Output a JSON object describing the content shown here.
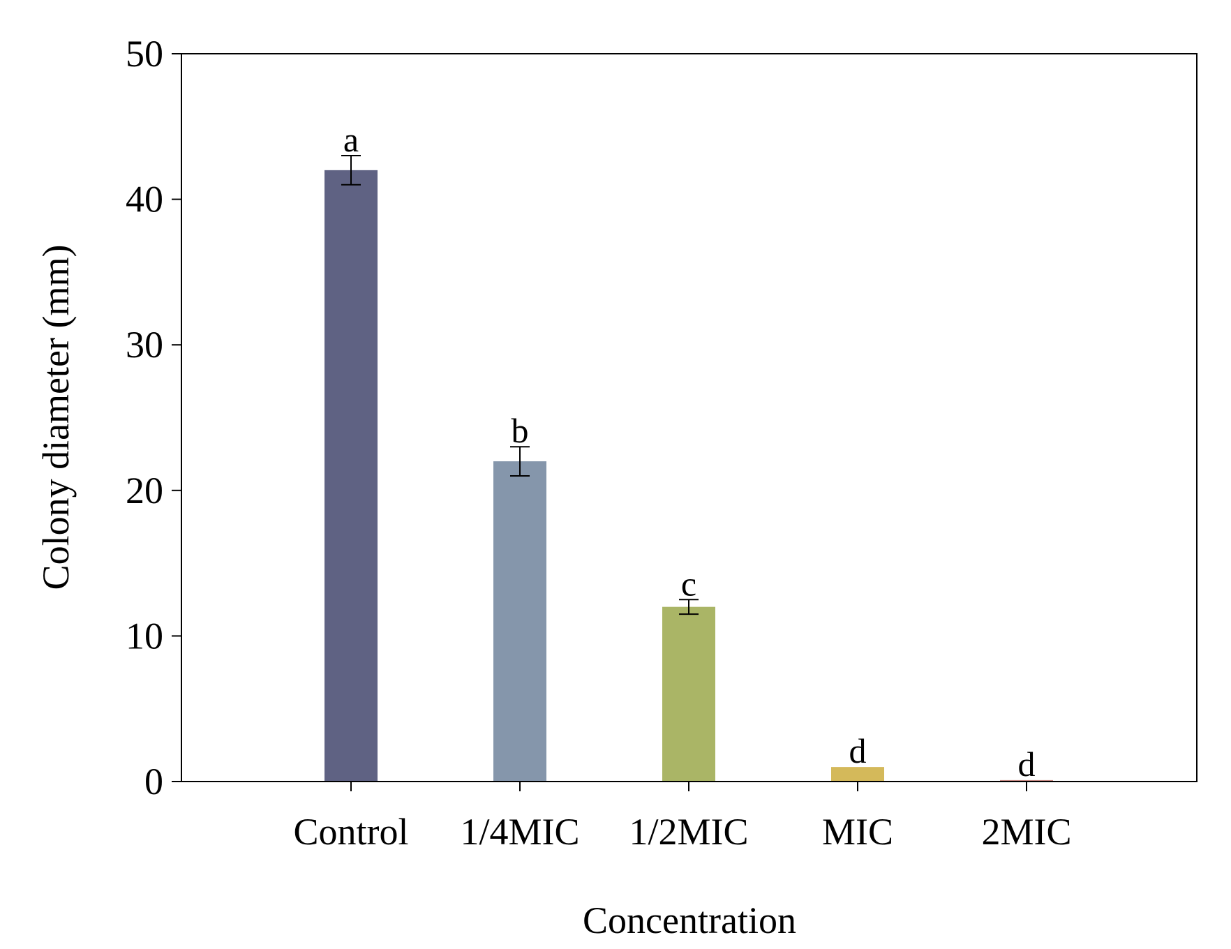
{
  "chart_data": {
    "type": "bar",
    "title": "",
    "xlabel": "Concentration",
    "ylabel": "Colony diameter (mm)",
    "categories": [
      "Control",
      "1/4MIC",
      "1/2MIC",
      "MIC",
      "2MIC"
    ],
    "values": [
      42,
      22,
      12,
      1,
      0.1
    ],
    "errors": [
      1,
      1,
      0.5,
      0,
      0
    ],
    "significance": [
      "a",
      "b",
      "c",
      "d",
      "d"
    ],
    "colors": [
      "#5f6283",
      "#8596ab",
      "#aab566",
      "#d4b95a",
      "#c98a84"
    ],
    "ylim": [
      0,
      50
    ],
    "yticks": [
      0,
      10,
      20,
      30,
      40,
      50
    ],
    "grid": false,
    "legend": "none"
  }
}
